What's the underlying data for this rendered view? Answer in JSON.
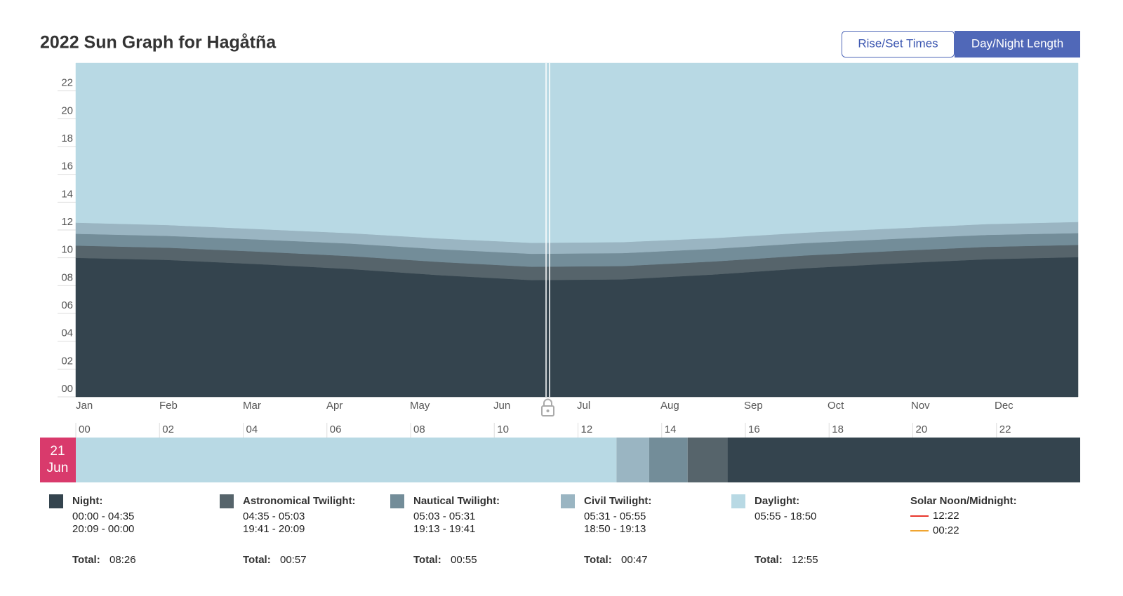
{
  "header": {
    "title": "2022 Sun Graph for Hagåtña",
    "buttons": [
      "Rise/Set Times",
      "Day/Night Length"
    ],
    "active_button": 1
  },
  "chart_data": [
    {
      "type": "area",
      "stacked": true,
      "categories": [
        "Jan",
        "Feb",
        "Mar",
        "Apr",
        "May",
        "Jun",
        "Jul",
        "Aug",
        "Sep",
        "Oct",
        "Nov",
        "Dec"
      ],
      "series": [
        {
          "name": "Night:",
          "color": "#34444e",
          "values": [
            10.0,
            9.85,
            9.55,
            9.2,
            8.75,
            8.4,
            8.45,
            8.8,
            9.25,
            9.6,
            9.9,
            10.05
          ]
        },
        {
          "name": "Astronomical Twilight:",
          "color": "#56646b",
          "values": [
            0.88,
            0.88,
            0.9,
            0.93,
            0.95,
            0.96,
            0.96,
            0.94,
            0.92,
            0.9,
            0.89,
            0.88
          ]
        },
        {
          "name": "Nautical Twilight:",
          "color": "#738d99",
          "values": [
            0.85,
            0.85,
            0.87,
            0.9,
            0.92,
            0.93,
            0.93,
            0.91,
            0.89,
            0.87,
            0.86,
            0.85
          ]
        },
        {
          "name": "Civil Twilight:",
          "color": "#9ab5c2",
          "values": [
            0.8,
            0.78,
            0.75,
            0.75,
            0.77,
            0.79,
            0.79,
            0.77,
            0.75,
            0.75,
            0.78,
            0.8
          ]
        },
        {
          "name": "Daylight:",
          "color": "#b8d9e4",
          "values": [
            11.47,
            11.64,
            11.93,
            12.22,
            12.61,
            12.92,
            12.87,
            12.58,
            12.19,
            11.88,
            11.57,
            11.42
          ]
        }
      ],
      "ylim": [
        0,
        24
      ],
      "yticks": [
        {
          "value": 0,
          "label": "00"
        },
        {
          "value": 2,
          "label": "02"
        },
        {
          "value": 4,
          "label": "04"
        },
        {
          "value": 6,
          "label": "06"
        },
        {
          "value": 8,
          "label": "08"
        },
        {
          "value": 10,
          "label": "10"
        },
        {
          "value": 12,
          "label": "12"
        },
        {
          "value": 14,
          "label": "14"
        },
        {
          "value": 16,
          "label": "16"
        },
        {
          "value": 18,
          "label": "18"
        },
        {
          "value": 20,
          "label": "20"
        },
        {
          "value": 22,
          "label": "22"
        }
      ]
    },
    {
      "type": "bar",
      "orientation": "horizontal",
      "stacked": true,
      "date_label": {
        "day": "21",
        "month": "Jun"
      },
      "series": [
        {
          "color": "#b8d9e4",
          "values": [
            12.92
          ]
        },
        {
          "color": "#9ab5c2",
          "values": [
            0.78
          ]
        },
        {
          "color": "#738d99",
          "values": [
            0.92
          ]
        },
        {
          "color": "#56646b",
          "values": [
            0.95
          ]
        },
        {
          "color": "#34444e",
          "values": [
            8.43
          ]
        }
      ],
      "xlim": [
        0,
        24
      ],
      "xticks": [
        {
          "value": 0,
          "label": "00"
        },
        {
          "value": 2,
          "label": "02"
        },
        {
          "value": 4,
          "label": "04"
        },
        {
          "value": 6,
          "label": "06"
        },
        {
          "value": 8,
          "label": "08"
        },
        {
          "value": 10,
          "label": "10"
        },
        {
          "value": 12,
          "label": "12"
        },
        {
          "value": 14,
          "label": "14"
        },
        {
          "value": 16,
          "label": "16"
        },
        {
          "value": 18,
          "label": "18"
        },
        {
          "value": 20,
          "label": "20"
        },
        {
          "value": 22,
          "label": "22"
        }
      ]
    }
  ],
  "legend": {
    "items": [
      {
        "times": [
          "00:00 - 04:35",
          "20:09 - 00:00"
        ],
        "total_label": "Total:",
        "total": "08:26"
      },
      {
        "times": [
          "04:35 - 05:03",
          "19:41 - 20:09"
        ],
        "total_label": "Total:",
        "total": "00:57"
      },
      {
        "times": [
          "05:03 - 05:31",
          "19:13 - 19:41"
        ],
        "total_label": "Total:",
        "total": "00:55"
      },
      {
        "times": [
          "05:31 - 05:55",
          "18:50 - 19:13"
        ],
        "total_label": "Total:",
        "total": "00:47"
      },
      {
        "times": [
          "05:55 - 18:50"
        ],
        "total_label": "Total:",
        "total": "12:55"
      }
    ],
    "solar": {
      "title": "Solar Noon/Midnight:",
      "entries": [
        {
          "color": "#e8362c",
          "time": "12:22"
        },
        {
          "color": "#f0a531",
          "time": "00:22"
        }
      ]
    }
  }
}
